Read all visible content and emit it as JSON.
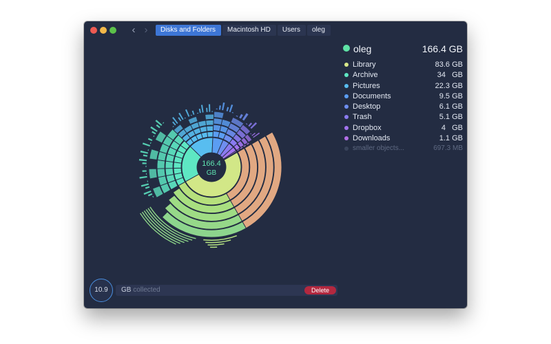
{
  "window": {
    "nav": {
      "back_icon": "chevron-left-icon",
      "forward_icon": "chevron-right-icon"
    },
    "breadcrumbs": [
      {
        "label": "Disks and Folders",
        "active": true
      },
      {
        "label": "Macintosh HD",
        "active": false
      },
      {
        "label": "Users",
        "active": false
      },
      {
        "label": "oleg",
        "active": false
      }
    ]
  },
  "chart": {
    "center_value": "166.4",
    "center_unit": "GB",
    "center_color": "#5fe3b0"
  },
  "legend": {
    "root": {
      "name": "oleg",
      "size": "166.4 GB",
      "color": "#5fe3a6"
    },
    "items": [
      {
        "name": "Library",
        "size": "83.6 GB",
        "gb": 83.6,
        "color": "#d8e88a"
      },
      {
        "name": "Archive",
        "size": "34   GB",
        "gb": 34.0,
        "color": "#5ee7c3"
      },
      {
        "name": "Pictures",
        "size": "22.3 GB",
        "gb": 22.3,
        "color": "#58bdf0"
      },
      {
        "name": "Documents",
        "size": "9.5 GB",
        "gb": 9.5,
        "color": "#5b9df2"
      },
      {
        "name": "Desktop",
        "size": "6.1 GB",
        "gb": 6.1,
        "color": "#6e8ef0"
      },
      {
        "name": "Trash",
        "size": "5.1 GB",
        "gb": 5.1,
        "color": "#8a7bf0"
      },
      {
        "name": "Dropbox",
        "size": "4   GB",
        "gb": 4.0,
        "color": "#a274ef"
      },
      {
        "name": "Downloads",
        "size": "1.1 GB",
        "gb": 1.1,
        "color": "#b26fe6"
      }
    ],
    "other": {
      "name": "smaller objects...",
      "size": "697.3 MB",
      "gb": 0.7,
      "color": "#3a445c"
    }
  },
  "bottom": {
    "collected_value": "10.9",
    "collected_unit": "GB",
    "collected_label": "collected",
    "delete_label": "Delete"
  }
}
